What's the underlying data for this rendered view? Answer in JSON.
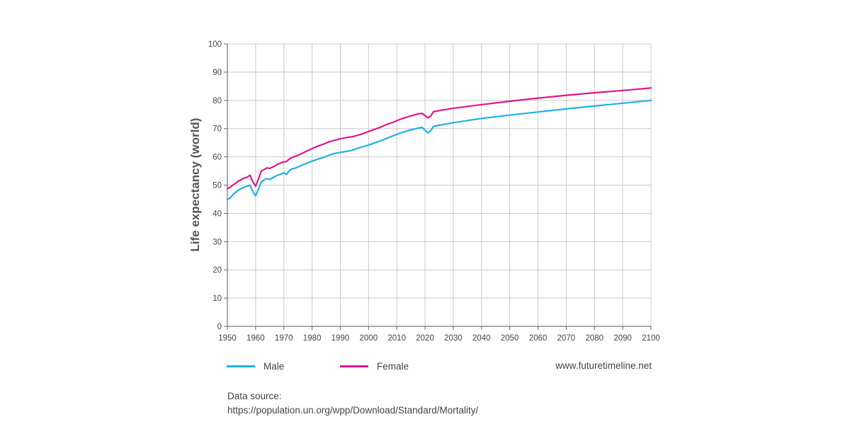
{
  "chart_data": {
    "type": "line",
    "ylabel": "Life expectancy (world)",
    "xlabel": "",
    "title": "",
    "xlim": [
      1950,
      2100
    ],
    "ylim": [
      0,
      100
    ],
    "x_ticks": [
      1950,
      1960,
      1970,
      1980,
      1990,
      2000,
      2010,
      2020,
      2030,
      2040,
      2050,
      2060,
      2070,
      2080,
      2090,
      2100
    ],
    "y_ticks": [
      0,
      10,
      20,
      30,
      40,
      50,
      60,
      70,
      80,
      90,
      100
    ],
    "grid": true,
    "legend_position": "bottom",
    "series": [
      {
        "name": "Male",
        "color": "#1fb1e6",
        "x": [
          1950,
          1951,
          1952,
          1953,
          1954,
          1955,
          1956,
          1957,
          1958,
          1959,
          1960,
          1961,
          1962,
          1963,
          1964,
          1965,
          1966,
          1967,
          1968,
          1969,
          1970,
          1971,
          1972,
          1973,
          1974,
          1975,
          1976,
          1978,
          1980,
          1982,
          1984,
          1986,
          1988,
          1990,
          1992,
          1994,
          1996,
          1998,
          2000,
          2002,
          2004,
          2006,
          2008,
          2010,
          2012,
          2014,
          2016,
          2018,
          2019,
          2020,
          2021,
          2022,
          2023,
          2025,
          2030,
          2040,
          2050,
          2060,
          2070,
          2080,
          2090,
          2100
        ],
        "values": [
          44.8,
          45.5,
          46.7,
          47.5,
          48.3,
          48.8,
          49.3,
          49.6,
          50.0,
          47.8,
          46.2,
          48.5,
          51.2,
          51.8,
          52.3,
          52.0,
          52.6,
          53.1,
          53.6,
          53.9,
          54.3,
          53.8,
          55.2,
          55.8,
          56.0,
          56.4,
          56.9,
          57.7,
          58.5,
          59.2,
          59.8,
          60.6,
          61.2,
          61.6,
          61.9,
          62.3,
          63.0,
          63.6,
          64.2,
          64.9,
          65.6,
          66.4,
          67.2,
          68.0,
          68.7,
          69.3,
          69.8,
          70.3,
          70.4,
          69.4,
          68.5,
          69.3,
          70.8,
          71.2,
          72.1,
          73.6,
          74.8,
          75.9,
          77.0,
          78.0,
          79.0,
          80.0
        ]
      },
      {
        "name": "Female",
        "color": "#e0168c",
        "x": [
          1950,
          1951,
          1952,
          1953,
          1954,
          1955,
          1956,
          1957,
          1958,
          1959,
          1960,
          1961,
          1962,
          1963,
          1964,
          1965,
          1966,
          1967,
          1968,
          1969,
          1970,
          1971,
          1972,
          1973,
          1974,
          1975,
          1976,
          1978,
          1980,
          1982,
          1984,
          1986,
          1988,
          1990,
          1992,
          1994,
          1996,
          1998,
          2000,
          2002,
          2004,
          2006,
          2008,
          2010,
          2012,
          2014,
          2016,
          2018,
          2019,
          2020,
          2021,
          2022,
          2023,
          2025,
          2030,
          2040,
          2050,
          2060,
          2070,
          2080,
          2090,
          2100
        ],
        "values": [
          48.8,
          49.2,
          50.1,
          50.7,
          51.5,
          52.0,
          52.5,
          52.8,
          53.5,
          51.2,
          49.6,
          52.1,
          55.0,
          55.5,
          56.1,
          55.9,
          56.4,
          56.9,
          57.5,
          57.9,
          58.2,
          58.4,
          59.3,
          59.8,
          60.2,
          60.6,
          61.0,
          62.0,
          62.9,
          63.8,
          64.5,
          65.3,
          65.9,
          66.4,
          66.8,
          67.1,
          67.6,
          68.2,
          69.0,
          69.7,
          70.4,
          71.3,
          72.0,
          72.8,
          73.6,
          74.2,
          74.8,
          75.3,
          75.4,
          74.6,
          73.8,
          74.5,
          76.0,
          76.4,
          77.2,
          78.5,
          79.7,
          80.8,
          81.8,
          82.7,
          83.5,
          84.4
        ]
      }
    ]
  },
  "legend": {
    "male_label": "Male",
    "female_label": "Female",
    "watermark": "www.futuretimeline.net"
  },
  "source": {
    "label": "Data source:",
    "url": "https://population.un.org/wpp/Download/Standard/Mortality/"
  }
}
